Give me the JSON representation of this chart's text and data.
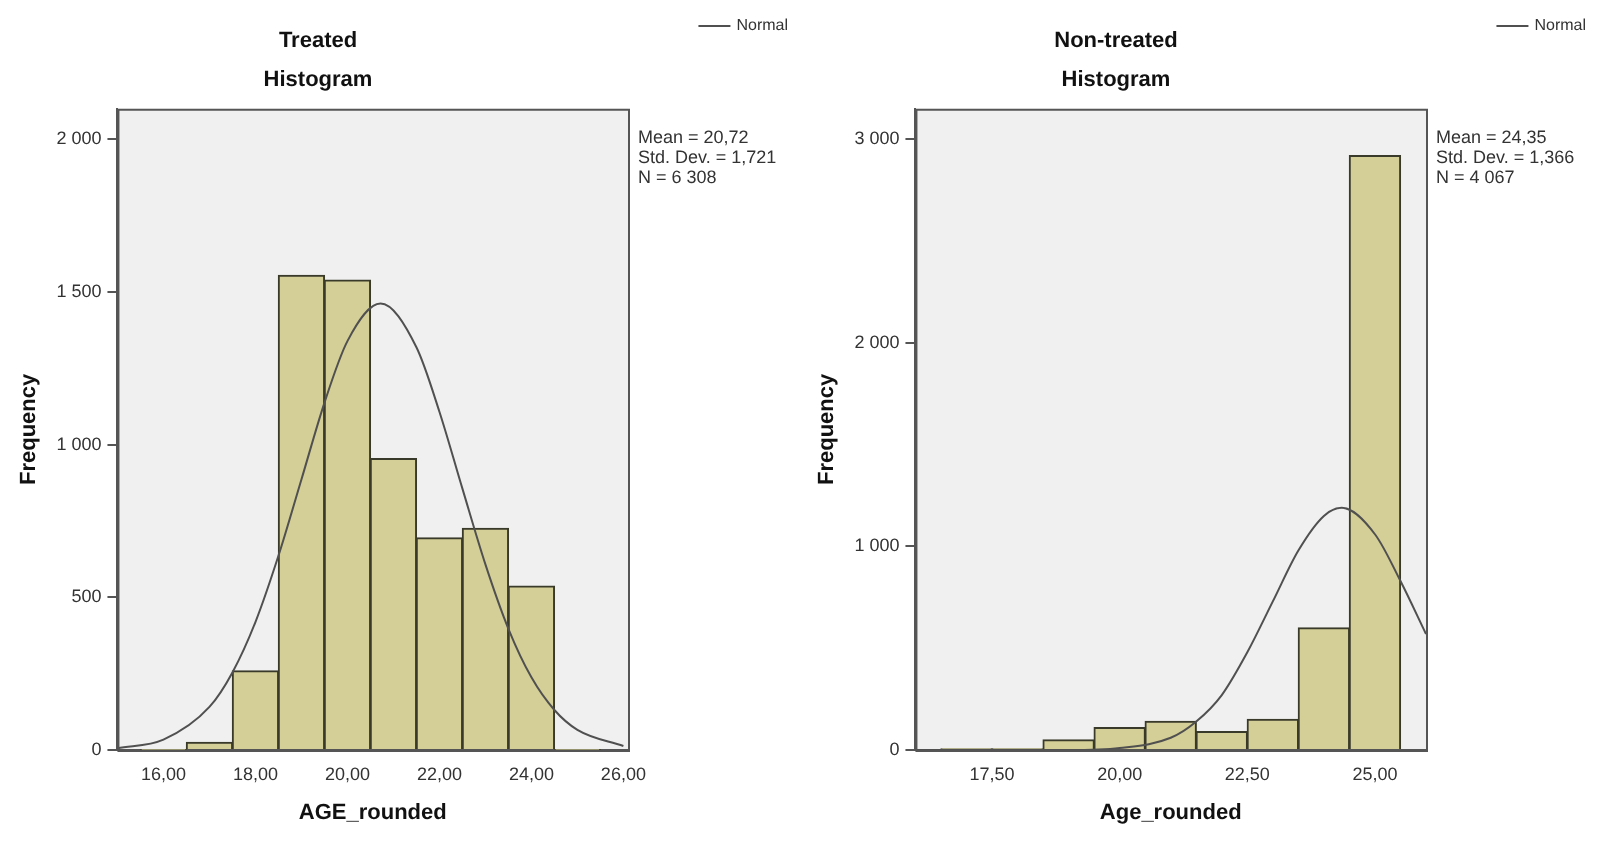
{
  "chart_data": [
    {
      "type": "histogram",
      "title": "Treated",
      "subtitle": "Histogram",
      "xlabel": "AGE_rounded",
      "ylabel": "Frequency",
      "legend": "top right",
      "grid": false,
      "marker": "none",
      "annotations": [
        "Mean = 20,72",
        "Std. Dev. = 1,721",
        "N = 6 308"
      ],
      "xlim": [
        15,
        26.1
      ],
      "xticks": [
        {
          "value": 16,
          "label": "16,00"
        },
        {
          "value": 18,
          "label": "18,00"
        },
        {
          "value": 20,
          "label": "20,00"
        },
        {
          "value": 22,
          "label": "22,00"
        },
        {
          "value": 24,
          "label": "24,00"
        },
        {
          "value": 26,
          "label": "26,00"
        }
      ],
      "ylim": [
        0,
        2100
      ],
      "yticks": [
        0,
        {
          "value": 500,
          "label": "500"
        },
        {
          "value": 1000,
          "label": "1 000"
        },
        {
          "value": 1500,
          "label": "1 500"
        },
        {
          "value": 2000,
          "label": "2 000"
        }
      ],
      "series": [
        {
          "color": "#d4cf96",
          "bins": [
            15.5,
            16.5,
            17.5,
            18.5,
            19.5,
            20.5,
            21.5,
            22.5,
            23.5,
            24.5,
            25.5
          ],
          "values": [
            3,
            25,
            259,
            1554,
            1539,
            954,
            695,
            726,
            537,
            3
          ]
        },
        {
          "type": "line",
          "name": "Normal",
          "color": "#505050",
          "x": [
            15,
            16,
            17,
            17.5,
            18,
            18.5,
            19,
            19.5,
            20,
            20.72,
            21.5,
            22,
            22.5,
            23,
            23.5,
            24,
            24.5,
            25,
            26
          ],
          "values": [
            6,
            34,
            141,
            254,
            419,
            636,
            886,
            1137,
            1339,
            1462,
            1319,
            1108,
            856,
            608,
            397,
            238,
            131,
            66,
            13
          ]
        }
      ]
    },
    {
      "type": "histogram",
      "title": "Non-treated",
      "subtitle": "Histogram",
      "xlabel": "Age_rounded",
      "ylabel": "Frequency",
      "legend": "top right",
      "grid": false,
      "marker": "none",
      "annotations": [
        "Mean = 24,35",
        "Std. Dev. = 1,366",
        "N = 4 067"
      ],
      "xlim": [
        16,
        26
      ],
      "xticks": [
        {
          "value": 17.5,
          "label": "17,50"
        },
        {
          "value": 20,
          "label": "20,00"
        },
        {
          "value": 22.5,
          "label": "22,50"
        },
        {
          "value": 25,
          "label": "25,00"
        }
      ],
      "ylim": [
        0,
        3150
      ],
      "yticks": [
        0,
        {
          "value": 1000,
          "label": "1 000"
        },
        {
          "value": 2000,
          "label": "2 000"
        },
        {
          "value": 3000,
          "label": "3 000"
        }
      ],
      "series": [
        {
          "color": "#d4cf96",
          "bins": [
            16.5,
            17.5,
            18.5,
            19.5,
            20.5,
            21.5,
            22.5,
            23.5,
            24.5,
            25.5
          ],
          "values": [
            5,
            5,
            50,
            110,
            140,
            90,
            150,
            600,
            2920
          ]
        },
        {
          "type": "line",
          "name": "Normal",
          "color": "#505050",
          "x": [
            16,
            18,
            19,
            20,
            21,
            21.5,
            22,
            22.5,
            23,
            23.5,
            24,
            24.35,
            25,
            25.5,
            26
          ],
          "values": [
            0,
            0,
            0,
            10,
            60,
            140,
            270,
            480,
            730,
            980,
            1150,
            1190,
            1060,
            830,
            570
          ]
        }
      ]
    }
  ]
}
